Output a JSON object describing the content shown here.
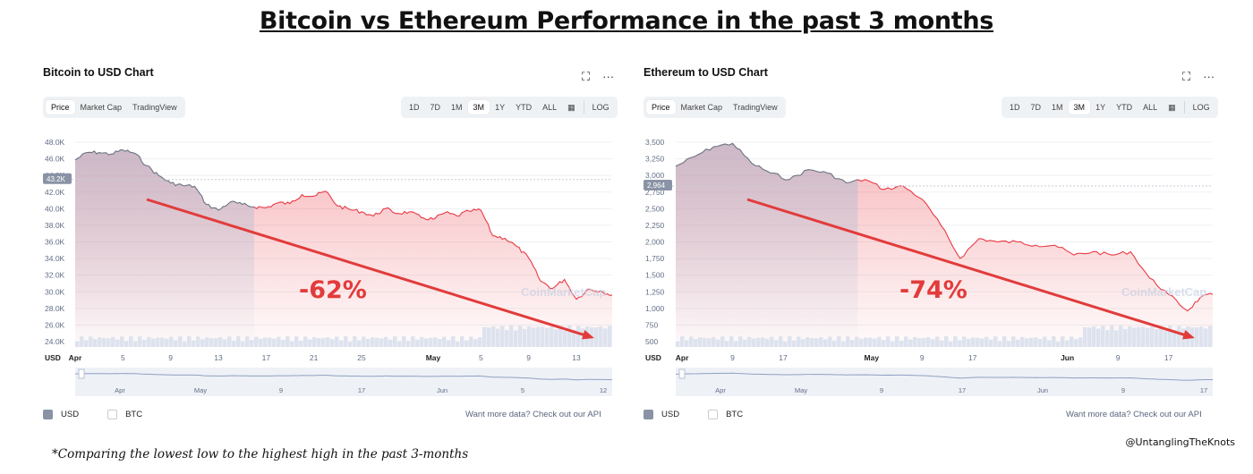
{
  "title": "Bitcoin vs Ethereum Performance in the past 3 months",
  "footnote": "*Comparing the lowest low to the highest high in the past 3-months",
  "credit": "@UntanglingTheKnots",
  "icons": {
    "expand": "⛶",
    "more": "···"
  },
  "colors": {
    "line_up": "#6b7280",
    "line_down": "#ea3943",
    "arrow": "#e23b3b",
    "pct": "#e23b3b"
  },
  "buttons": {
    "tabs": [
      "Price",
      "Market Cap",
      "TradingView"
    ],
    "ranges": [
      "1D",
      "7D",
      "1M",
      "3M",
      "1Y",
      "YTD",
      "ALL"
    ],
    "active_range": "3M",
    "log": "LOG",
    "calendar_icon": "calendar-icon"
  },
  "legend": {
    "usd": "USD",
    "btc": "BTC"
  },
  "api_text": "Want more data? Check out our API",
  "watermark": "CoinMarketCap",
  "chart_data": [
    {
      "type": "line",
      "title": "Bitcoin to USD Chart",
      "currency_label": "USD",
      "current_price_label": "43.2K",
      "change_label": "-62%",
      "y_ticks": [
        "48.0K",
        "46.0K",
        "44.0K",
        "42.0K",
        "40.0K",
        "38.0K",
        "36.0K",
        "34.0K",
        "32.0K",
        "30.0K",
        "28.0K",
        "26.0K",
        "24.0K"
      ],
      "ylim": [
        23000,
        48500
      ],
      "x_ticks": [
        {
          "d": 0,
          "l": "Apr"
        },
        {
          "d": 4,
          "l": "5"
        },
        {
          "d": 8,
          "l": "9"
        },
        {
          "d": 12,
          "l": "13"
        },
        {
          "d": 16,
          "l": "17"
        },
        {
          "d": 20,
          "l": "21"
        },
        {
          "d": 24,
          "l": "25"
        },
        {
          "d": 30,
          "l": "May"
        },
        {
          "d": 34,
          "l": "5"
        },
        {
          "d": 38,
          "l": "9"
        },
        {
          "d": 42,
          "l": "13"
        }
      ],
      "xlim": [
        0,
        45
      ],
      "nav_ticks": [
        "Apr",
        "May",
        "9",
        "17",
        "Jun",
        "5",
        "12"
      ],
      "series": [
        {
          "x": [
            0,
            1,
            2,
            3,
            4,
            5,
            6,
            7,
            8,
            9,
            10,
            11,
            12,
            13,
            14,
            15,
            16,
            17,
            18,
            19,
            20,
            21,
            22,
            23,
            24,
            25,
            26,
            27,
            28,
            29,
            30,
            31,
            32,
            33,
            34,
            35,
            36,
            37,
            38,
            39,
            40,
            41,
            42,
            43,
            44,
            45
          ],
          "values": [
            45700,
            46600,
            46600,
            46400,
            46900,
            46500,
            45000,
            43800,
            42900,
            42600,
            42500,
            40300,
            39600,
            40600,
            40300,
            40000,
            39900,
            40500,
            40400,
            41500,
            41300,
            41900,
            40100,
            39700,
            39400,
            38900,
            39800,
            39200,
            39400,
            38700,
            38500,
            39300,
            38900,
            39500,
            39600,
            36500,
            36200,
            35200,
            33800,
            31000,
            30100,
            31200,
            28800,
            30000,
            29800,
            29300
          ]
        }
      ]
    },
    {
      "type": "line",
      "title": "Ethereum to USD Chart",
      "currency_label": "USD",
      "current_price_label": "2,964",
      "change_label": "-74%",
      "y_ticks": [
        "3,500",
        "3,250",
        "3,000",
        "2,750",
        "2,500",
        "2,250",
        "2,000",
        "1,750",
        "1,500",
        "1,250",
        "1,000",
        "750",
        "500"
      ],
      "ylim": [
        400,
        3600
      ],
      "x_ticks": [
        {
          "d": 1,
          "l": "Apr"
        },
        {
          "d": 9,
          "l": "9"
        },
        {
          "d": 17,
          "l": "17"
        },
        {
          "d": 31,
          "l": "May"
        },
        {
          "d": 39,
          "l": "9"
        },
        {
          "d": 47,
          "l": "17"
        },
        {
          "d": 62,
          "l": "Jun"
        },
        {
          "d": 70,
          "l": "9"
        },
        {
          "d": 78,
          "l": "17"
        }
      ],
      "xlim": [
        0,
        85
      ],
      "nav_ticks": [
        "Apr",
        "May",
        "9",
        "17",
        "Jun",
        "9",
        "17"
      ],
      "series": [
        {
          "x": [
            0,
            3,
            6,
            9,
            12,
            15,
            18,
            21,
            24,
            27,
            30,
            33,
            36,
            39,
            42,
            45,
            48,
            51,
            54,
            57,
            60,
            63,
            66,
            69,
            72,
            75,
            78,
            81,
            83,
            85
          ],
          "values": [
            3150,
            3300,
            3450,
            3500,
            3200,
            3050,
            2950,
            3100,
            3050,
            2900,
            2950,
            2800,
            2850,
            2650,
            2250,
            1750,
            2050,
            2000,
            2000,
            1950,
            1950,
            1800,
            1850,
            1800,
            1850,
            1450,
            1200,
            950,
            1150,
            1200
          ]
        }
      ]
    }
  ]
}
